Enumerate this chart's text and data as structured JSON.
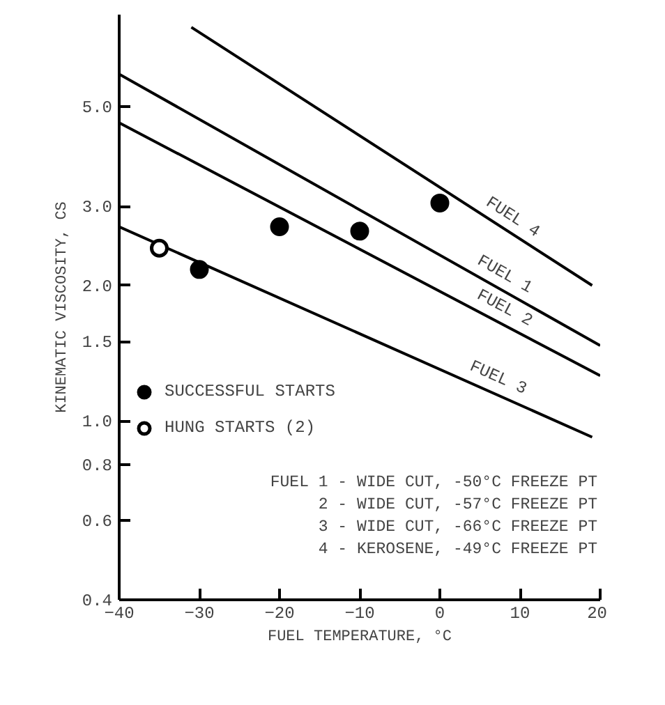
{
  "chart_data": {
    "type": "line",
    "xlabel": "FUEL TEMPERATURE, °C",
    "ylabel": "KINEMATIC VISCOSITY, CS",
    "log": "y",
    "xlim": [
      -40,
      20
    ],
    "ylim": [
      0.4,
      8
    ],
    "xticks": [
      -40,
      -30,
      -20,
      -10,
      0,
      10,
      20
    ],
    "yticks": [
      {
        "value": 0.4,
        "label": "0.4"
      },
      {
        "value": 0.6,
        "label": "0.6"
      },
      {
        "value": 0.8,
        "label": "0.8"
      },
      {
        "value": 1.0,
        "label": "1.0"
      },
      {
        "value": 1.5,
        "label": "1.5"
      },
      {
        "value": 2.0,
        "label": "2.0"
      },
      {
        "value": 3.0,
        "label": "3.0"
      },
      {
        "value": 5.0,
        "label": "5.0"
      }
    ],
    "grid": false,
    "legend": "left",
    "marker": "none",
    "line_style": "solid",
    "series": [
      {
        "name": "FUEL 4",
        "color": "#000000",
        "x": [
          -31,
          19
        ],
        "values": [
          7.5,
          2.0
        ]
      },
      {
        "name": "FUEL 1",
        "color": "#000000",
        "x": [
          -40,
          20
        ],
        "values": [
          5.9,
          1.47
        ]
      },
      {
        "name": "FUEL 2",
        "color": "#000000",
        "x": [
          -40,
          20
        ],
        "values": [
          4.6,
          1.26
        ]
      },
      {
        "name": "FUEL 3",
        "color": "#000000",
        "x": [
          -40,
          19
        ],
        "values": [
          2.7,
          0.92
        ]
      },
      {
        "name": "SUCCESSFUL STARTS",
        "type": "scatter",
        "marker": "circle",
        "color": "#000000",
        "x": [
          -30,
          -20,
          -10,
          0
        ],
        "values": [
          2.17,
          2.7,
          2.64,
          3.05
        ]
      },
      {
        "name": "HUNG STARTS (2)",
        "type": "scatter",
        "marker": "circle_open",
        "color": "#000000",
        "x": [
          -35
        ],
        "values": [
          2.42
        ]
      }
    ],
    "annotations": [
      "FUEL 1 - WIDE CUT, -50°C FREEZE PT",
      "2 - WIDE CUT, -57°C FREEZE PT",
      "3 - WIDE CUT, -66°C FREEZE PT",
      "4 - KEROSENE, -49°C FREEZE PT"
    ]
  }
}
